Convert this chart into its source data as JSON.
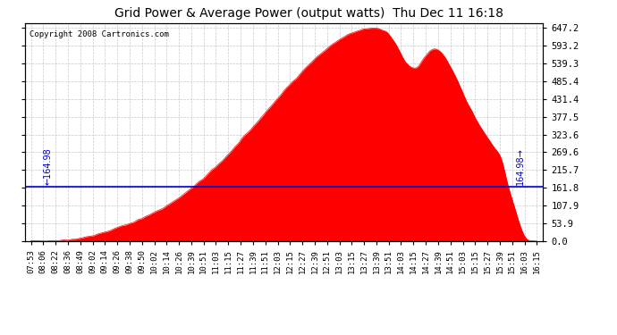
{
  "title": "Grid Power & Average Power (output watts)  Thu Dec 11 16:18",
  "copyright": "Copyright 2008 Cartronics.com",
  "average_line_value": 164.98,
  "y_max": 647.2,
  "y_min": 0.0,
  "y_ticks": [
    0.0,
    53.9,
    107.9,
    161.8,
    215.7,
    269.6,
    323.6,
    377.5,
    431.4,
    485.4,
    539.3,
    593.2,
    647.2
  ],
  "fill_color": "#ff0000",
  "avg_line_color": "#0000cc",
  "grid_color": "#bbbbbb",
  "bg_color": "#ffffff",
  "x_labels": [
    "07:53",
    "08:06",
    "08:22",
    "08:36",
    "08:49",
    "09:02",
    "09:14",
    "09:26",
    "09:38",
    "09:50",
    "10:02",
    "10:14",
    "10:26",
    "10:39",
    "10:51",
    "11:03",
    "11:15",
    "11:27",
    "11:39",
    "11:51",
    "12:03",
    "12:15",
    "12:27",
    "12:39",
    "12:51",
    "13:03",
    "13:15",
    "13:27",
    "13:39",
    "13:51",
    "14:03",
    "14:15",
    "14:27",
    "14:39",
    "14:51",
    "15:03",
    "15:15",
    "15:27",
    "15:39",
    "15:51",
    "16:03",
    "16:15"
  ],
  "num_points": 500
}
